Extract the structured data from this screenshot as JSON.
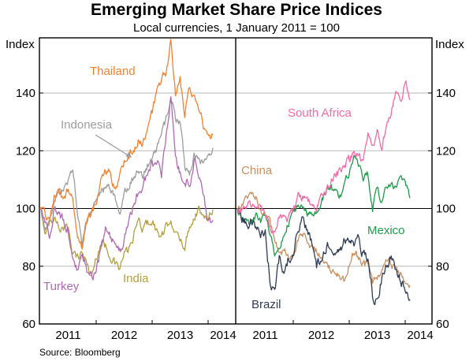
{
  "header": {
    "title": "Emerging Market Share Price Indices",
    "subtitle": "Local currencies, 1 January 2011 = 100"
  },
  "axes": {
    "left_unit": "Index",
    "right_unit": "Index"
  },
  "source_note": "Source: Bloomberg",
  "chart_data": {
    "type": "line",
    "title": "Emerging Market Share Price Indices",
    "subtitle": "Local currencies, 1 January 2011 = 100",
    "ylabel": "Index",
    "ylim": [
      60,
      159
    ],
    "yticks": [
      60,
      80,
      100,
      120,
      140
    ],
    "reference_line": 100,
    "grid": "horizontal",
    "legend_position": "inline-labels",
    "x_start": "2011-01",
    "x_interval": "month",
    "x_tick_years": [
      "2011",
      "2012",
      "2013",
      "2014"
    ],
    "source": "Source: Bloomberg",
    "panels": [
      {
        "id": "left",
        "series": [
          {
            "id": "india",
            "name": "India",
            "color": "#b3a03c",
            "values": [
              100,
              92,
              95,
              97,
              94,
              92,
              94,
              85,
              83,
              85,
              81,
              76,
              83,
              88,
              87,
              84,
              81,
              79,
              84,
              86,
              90,
              96,
              93,
              95,
              96,
              92,
              90,
              93,
              97,
              91,
              89,
              87,
              94,
              97,
              100,
              96,
              98,
              100
            ]
          },
          {
            "id": "indonesia",
            "name": "Indonesia",
            "color": "#9d9d9d",
            "values": [
              100,
              93,
              96,
              103,
              105,
              106,
              110,
              113,
              99,
              88,
              96,
              100,
              102,
              106,
              107,
              108,
              104,
              98,
              105,
              108,
              111,
              114,
              112,
              115,
              117,
              121,
              126,
              131,
              140,
              131,
              130,
              115,
              111,
              119,
              116,
              115,
              117,
              120
            ]
          },
          {
            "id": "turkey",
            "name": "Turkey",
            "color": "#b169b4",
            "values": [
              100,
              95,
              91,
              100,
              98,
              96,
              93,
              85,
              78,
              84,
              79,
              76,
              78,
              86,
              92,
              90,
              88,
              85,
              90,
              95,
              101,
              106,
              108,
              112,
              114,
              117,
              111,
              125,
              140,
              116,
              112,
              110,
              108,
              117,
              113,
              105,
              96,
              95
            ]
          },
          {
            "id": "thailand",
            "name": "Thailand",
            "color": "#f4812f",
            "values": [
              100,
              98,
              96,
              104,
              106,
              103,
              107,
              104,
              91,
              87,
              96,
              98,
              103,
              110,
              114,
              112,
              106,
              110,
              116,
              118,
              121,
              124,
              122,
              127,
              133,
              140,
              145,
              147,
              158,
              140,
              145,
              132,
              143,
              138,
              135,
              129,
              124,
              126
            ]
          }
        ]
      },
      {
        "id": "right",
        "series": [
          {
            "id": "china",
            "name": "China",
            "color": "#c98f5f",
            "values": [
              100,
              101,
              103,
              105,
              104,
              99,
              98,
              95,
              89,
              86,
              85,
              83,
              83,
              89,
              91,
              88,
              87,
              85,
              83,
              80,
              79,
              78,
              76,
              75,
              81,
              85,
              83,
              81,
              80,
              74,
              76,
              79,
              82,
              80,
              79,
              78,
              75,
              73
            ]
          },
          {
            "id": "mexico",
            "name": "Mexico",
            "color": "#1b9c47",
            "values": [
              100,
              97,
              96,
              95,
              97,
              96,
              98,
              92,
              83,
              87,
              91,
              95,
              98,
              101,
              101,
              98,
              97,
              98,
              103,
              106,
              108,
              105,
              104,
              109,
              112,
              119,
              114,
              111,
              112,
              100,
              106,
              103,
              108,
              109,
              106,
              110,
              110,
              104
            ]
          },
          {
            "id": "brazil",
            "name": "Brazil",
            "color": "#2e3b54",
            "values": [
              100,
              97,
              94,
              96,
              93,
              91,
              92,
              75,
              72,
              82,
              78,
              83,
              84,
              93,
              98,
              92,
              88,
              80,
              83,
              86,
              88,
              86,
              85,
              89,
              90,
              87,
              89,
              84,
              82,
              70,
              68,
              76,
              80,
              84,
              79,
              76,
              71,
              67
            ]
          },
          {
            "id": "south_africa",
            "name": "South Africa",
            "color": "#f668a6",
            "values": [
              100,
              99,
              101,
              102,
              101,
              100,
              99,
              93,
              91,
              97,
              96,
              97,
              99,
              104,
              104,
              103,
              101,
              100,
              104,
              106,
              109,
              112,
              113,
              115,
              117,
              119,
              119,
              116,
              127,
              121,
              126,
              122,
              129,
              133,
              140,
              136,
              145,
              138
            ]
          }
        ]
      }
    ],
    "annotations": [
      {
        "id": "indonesia-arrow",
        "type": "arrow",
        "color": "#9d9d9d"
      }
    ]
  }
}
